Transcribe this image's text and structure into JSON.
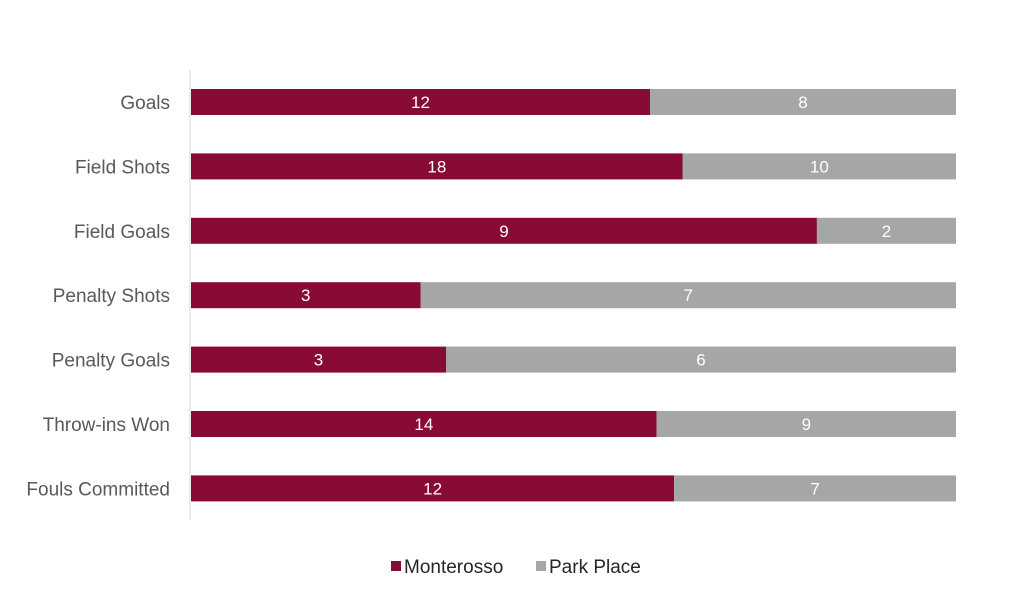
{
  "chart_data": {
    "type": "bar",
    "orientation": "horizontal",
    "stacked": "100%",
    "categories": [
      "Goals",
      "Field Shots",
      "Field Goals",
      "Penalty Shots",
      "Penalty Goals",
      "Throw-ins Won",
      "Fouls Committed"
    ],
    "series": [
      {
        "name": "Monterosso",
        "color": "#870A37",
        "values": [
          12,
          18,
          9,
          3,
          3,
          14,
          12
        ]
      },
      {
        "name": "Park Place",
        "color": "#A6A6A6",
        "values": [
          8,
          10,
          2,
          7,
          6,
          9,
          7
        ]
      }
    ],
    "title": "",
    "xlabel": "",
    "ylabel": "",
    "grid": false,
    "legend": "bottom"
  }
}
